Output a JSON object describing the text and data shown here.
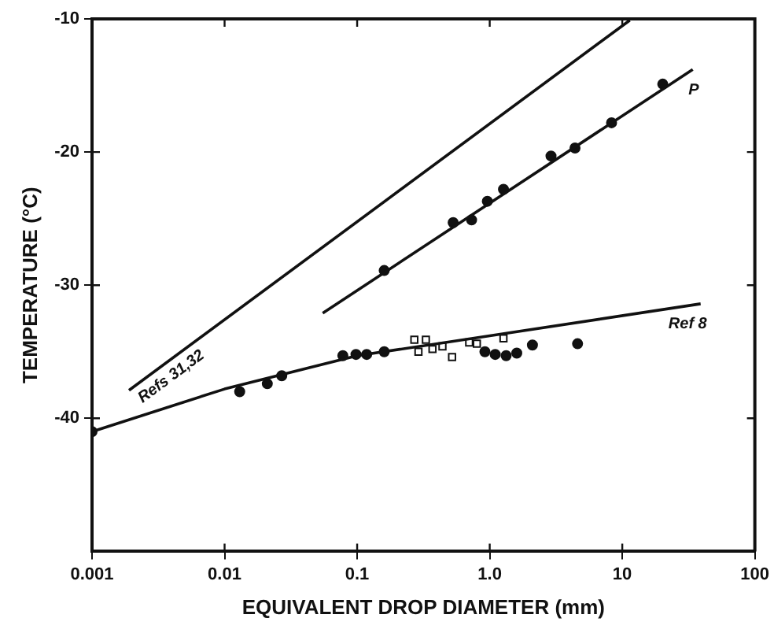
{
  "chart_data": {
    "type": "scatter",
    "xlabel": "EQUIVALENT DROP DIAMETER (mm)",
    "ylabel": "TEMPERATURE (°C)",
    "log": "x",
    "xlim": [
      0.001,
      100
    ],
    "xticks": [
      0.001,
      0.01,
      0.1,
      {
        "value": 1,
        "label": "1.0"
      },
      10,
      100
    ],
    "ylim": [
      -50,
      -10
    ],
    "yticks": [
      -10,
      -20,
      -30,
      -40
    ],
    "grid": false,
    "series": [
      {
        "type": "line",
        "name": "Refs 31,32",
        "color": "#111111",
        "marker": "none",
        "x": [
          0.0019,
          11.4
        ],
        "values": [
          -37.9,
          -10.1
        ]
      },
      {
        "type": "line",
        "name": "P",
        "color": "#111111",
        "marker": "none",
        "x": [
          0.055,
          34
        ],
        "values": [
          -32.1,
          -13.8
        ]
      },
      {
        "type": "line",
        "name": "Ref 8",
        "color": "#111111",
        "marker": "none",
        "x": [
          0.001,
          0.01,
          0.1,
          1,
          39
        ],
        "values": [
          -41.0,
          -37.8,
          -35.3,
          -33.8,
          -31.4
        ]
      },
      {
        "color": "#111111",
        "marker": "circle",
        "x": [
          0.16,
          0.53,
          0.73,
          0.96,
          1.27,
          2.9,
          4.4,
          8.3,
          20.2,
          0.001,
          0.013,
          0.021,
          0.027,
          0.078,
          0.098,
          0.118,
          0.16,
          0.92,
          1.1,
          1.33,
          1.6,
          2.1,
          4.6
        ],
        "values": [
          -28.9,
          -25.3,
          -25.1,
          -23.7,
          -22.8,
          -20.3,
          -19.7,
          -17.8,
          -14.9,
          -41.0,
          -38.0,
          -37.4,
          -36.8,
          -35.3,
          -35.2,
          -35.2,
          -35.0,
          -35.0,
          -35.2,
          -35.3,
          -35.1,
          -34.5,
          -34.4
        ]
      },
      {
        "color": "#111111",
        "marker": "square",
        "x": [
          0.27,
          0.33,
          0.29,
          0.37,
          0.44,
          0.52,
          0.7,
          0.8,
          1.27
        ],
        "values": [
          -34.1,
          -34.1,
          -35.0,
          -34.8,
          -34.6,
          -35.4,
          -34.3,
          -34.4,
          -34.0
        ]
      }
    ]
  }
}
